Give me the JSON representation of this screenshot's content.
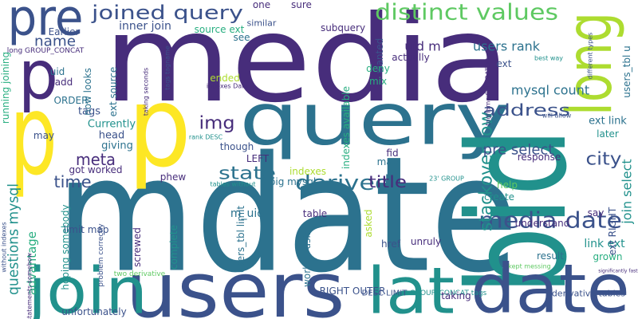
{
  "words": [
    "media",
    "mdate",
    "pre",
    "p",
    "p",
    "p",
    "query",
    "bid",
    "long",
    "users",
    "join",
    "lat",
    "date",
    "joined query",
    "distinct values",
    "media date",
    "derived",
    "address",
    "stackoverflow",
    "state",
    "time",
    "title",
    "city",
    "img",
    "name",
    "meta",
    "questions mysql",
    "advantage",
    "Earlier",
    "long GROUP_CONCAT",
    "uid",
    "add",
    "ORDER",
    "tags",
    "may",
    "head",
    "giving",
    "Currently",
    "got worked",
    "inner join",
    "source ext",
    "see",
    "similar",
    "one",
    "sure",
    "uid m",
    "users rank",
    "subquery",
    "wanted",
    "actually",
    "deny",
    "mix",
    "ext",
    "mysql count",
    "users_tbl u",
    "best way",
    "different types",
    "will allow",
    "ext link",
    "later",
    "join select",
    "pre select",
    "response",
    "help",
    "create",
    "understand",
    "say",
    "result",
    "grown",
    "link ext",
    "ext RIGHT",
    "kept messing",
    "significantly faster",
    "derivative tables",
    "DESC LIMIT",
    "GROUP_CONCAT tags",
    "RIGHT OUTER",
    "taking",
    "unruly",
    "href",
    "asked",
    "worked using",
    "table",
    "map",
    "fid",
    "big mysql",
    "indexes",
    "23' GROUP",
    "indexes available",
    "rank DESC",
    "though",
    "LEFT",
    "tables without",
    "phew",
    "m_uid",
    "users_tbl limit",
    "complete",
    "screwed",
    "limit map",
    "hoping somebody",
    "unfortunately",
    "two derivative",
    "problem correctly",
    "without indexes",
    "statements somehow",
    "running joining",
    "now looks",
    "ext source",
    "taking seconds",
    "tags tagname",
    "indexes Dare",
    "ended",
    "tagname SEPARATOR"
  ]
}
